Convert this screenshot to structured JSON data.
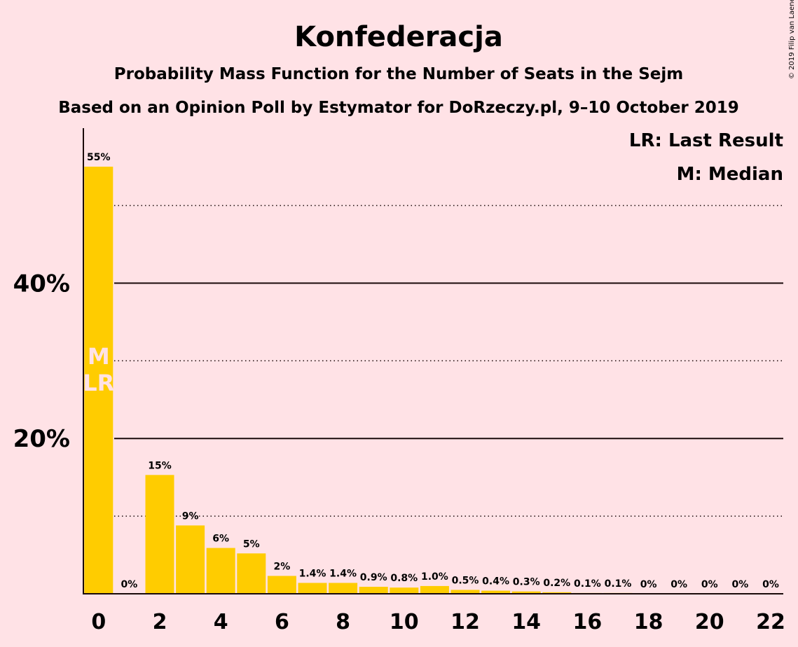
{
  "title": "Konfederacja",
  "subtitle1": "Probability Mass Function for the Number of Seats in the Sejm",
  "subtitle2": "Based on an Opinion Poll by Estymator for DoRzeczy.pl, 9–10 October 2019",
  "legend": {
    "lr": "LR: Last Result",
    "m": "M: Median"
  },
  "copyright": "© 2019 Filip van Laenen",
  "colors": {
    "background": "#FFE2E6",
    "bar": "#FFCC00",
    "text": "#1a0a0a",
    "marker": "#FFE2E6"
  },
  "chart_data": {
    "type": "bar",
    "xlabel": "",
    "ylabel": "",
    "ylim": [
      0,
      0.575
    ],
    "x": [
      0,
      1,
      2,
      3,
      4,
      5,
      6,
      7,
      8,
      9,
      10,
      11,
      12,
      13,
      14,
      15,
      16,
      17,
      18,
      19,
      20,
      21,
      22
    ],
    "values": [
      0.55,
      0.0,
      0.153,
      0.088,
      0.059,
      0.052,
      0.023,
      0.014,
      0.014,
      0.009,
      0.008,
      0.01,
      0.005,
      0.004,
      0.003,
      0.002,
      0.001,
      0.001,
      0,
      0,
      0,
      0,
      0
    ],
    "data_labels": [
      "55%",
      "0%",
      "15%",
      "9%",
      "6%",
      "5%",
      "2%",
      "1.4%",
      "1.4%",
      "0.9%",
      "0.8%",
      "1.0%",
      "0.5%",
      "0.4%",
      "0.3%",
      "0.2%",
      "0.1%",
      "0.1%",
      "0%",
      "0%",
      "0%",
      "0%",
      "0%"
    ],
    "x_tick_values": [
      0,
      2,
      4,
      6,
      8,
      10,
      12,
      14,
      16,
      18,
      20,
      22
    ],
    "x_tick_labels": [
      "0",
      "2",
      "4",
      "6",
      "8",
      "10",
      "12",
      "14",
      "16",
      "18",
      "20",
      "22"
    ],
    "y_ticks_solid": [
      0.2,
      0.4
    ],
    "y_tick_labels": [
      "20%",
      "40%"
    ],
    "y_ticks_dotted": [
      0.1,
      0.3,
      0.5
    ],
    "median": 0,
    "last_result": 0,
    "median_label": "M",
    "last_result_label": "LR"
  }
}
